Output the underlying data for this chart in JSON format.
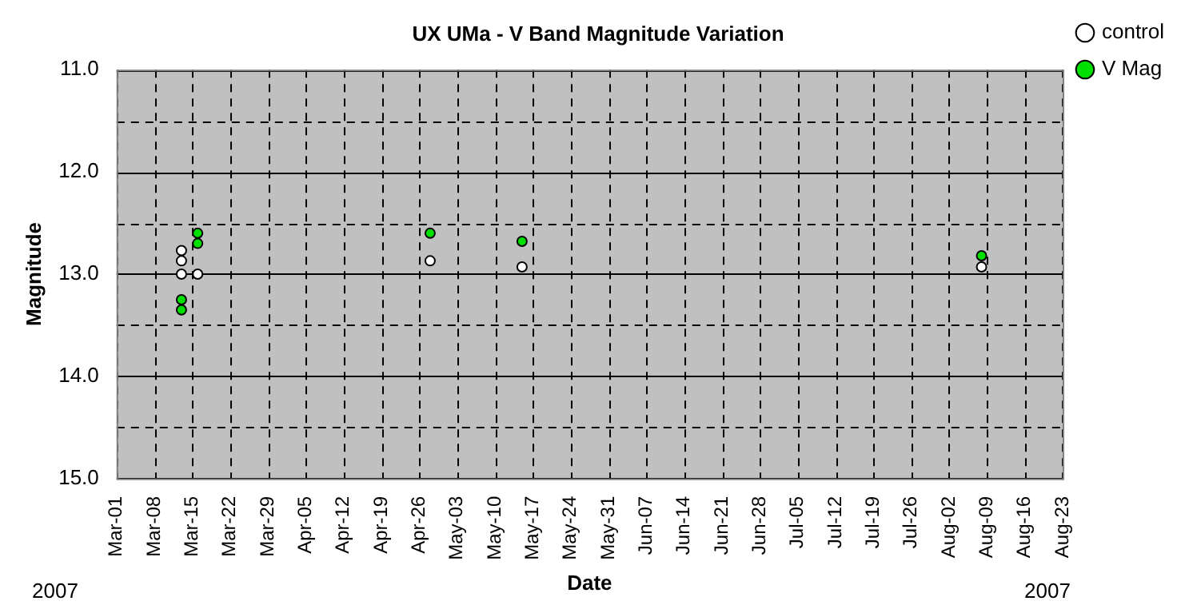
{
  "chart_data": {
    "type": "scatter",
    "title": "UX UMa - V Band Magnitude Variation",
    "xlabel": "Date",
    "ylabel": "Magnitude",
    "annotations": [
      "2007",
      "2007"
    ],
    "xlim": [
      "2007-03-01",
      "2007-08-23"
    ],
    "xticks": [
      {
        "value": "2007-03-01",
        "label": "Mar-01"
      },
      {
        "value": "2007-03-08",
        "label": "Mar-08"
      },
      {
        "value": "2007-03-15",
        "label": "Mar-15"
      },
      {
        "value": "2007-03-22",
        "label": "Mar-22"
      },
      {
        "value": "2007-03-29",
        "label": "Mar-29"
      },
      {
        "value": "2007-04-05",
        "label": "Apr-05"
      },
      {
        "value": "2007-04-12",
        "label": "Apr-12"
      },
      {
        "value": "2007-04-19",
        "label": "Apr-19"
      },
      {
        "value": "2007-04-26",
        "label": "Apr-26"
      },
      {
        "value": "2007-05-03",
        "label": "May-03"
      },
      {
        "value": "2007-05-10",
        "label": "May-10"
      },
      {
        "value": "2007-05-17",
        "label": "May-17"
      },
      {
        "value": "2007-05-24",
        "label": "May-24"
      },
      {
        "value": "2007-05-31",
        "label": "May-31"
      },
      {
        "value": "2007-06-07",
        "label": "Jun-07"
      },
      {
        "value": "2007-06-14",
        "label": "Jun-14"
      },
      {
        "value": "2007-06-21",
        "label": "Jun-21"
      },
      {
        "value": "2007-06-28",
        "label": "Jun-28"
      },
      {
        "value": "2007-07-05",
        "label": "Jul-05"
      },
      {
        "value": "2007-07-12",
        "label": "Jul-12"
      },
      {
        "value": "2007-07-19",
        "label": "Jul-19"
      },
      {
        "value": "2007-07-26",
        "label": "Jul-26"
      },
      {
        "value": "2007-08-02",
        "label": "Aug-02"
      },
      {
        "value": "2007-08-09",
        "label": "Aug-09"
      },
      {
        "value": "2007-08-16",
        "label": "Aug-16"
      },
      {
        "value": "2007-08-23",
        "label": "Aug-23"
      }
    ],
    "ylim": [
      15.0,
      11.0
    ],
    "yticks": [
      {
        "value": 11,
        "label": "11.0"
      },
      {
        "value": 11.5,
        "label": null
      },
      {
        "value": 12,
        "label": "12.0"
      },
      {
        "value": 12.5,
        "label": null
      },
      {
        "value": 13,
        "label": "13.0"
      },
      {
        "value": 13.5,
        "label": null
      },
      {
        "value": 14,
        "label": "14.0"
      },
      {
        "value": 14.5,
        "label": null
      },
      {
        "value": 15,
        "label": "15.0"
      }
    ],
    "grid": true,
    "legend": "right",
    "marker": "circle",
    "series": [
      {
        "name": "control",
        "color": "#ffffff",
        "x": [
          "2007-03-13",
          "2007-03-13",
          "2007-03-13",
          "2007-03-16",
          "2007-04-28",
          "2007-05-15",
          "2007-08-08"
        ],
        "values": [
          12.77,
          12.87,
          13.0,
          13.0,
          12.87,
          12.93,
          12.93
        ]
      },
      {
        "name": "V Mag",
        "color": "#00e000",
        "x": [
          "2007-03-16",
          "2007-03-16",
          "2007-03-13",
          "2007-03-13",
          "2007-04-28",
          "2007-05-15",
          "2007-08-08"
        ],
        "values": [
          12.6,
          12.7,
          13.25,
          13.35,
          12.6,
          12.68,
          12.82
        ]
      }
    ]
  }
}
